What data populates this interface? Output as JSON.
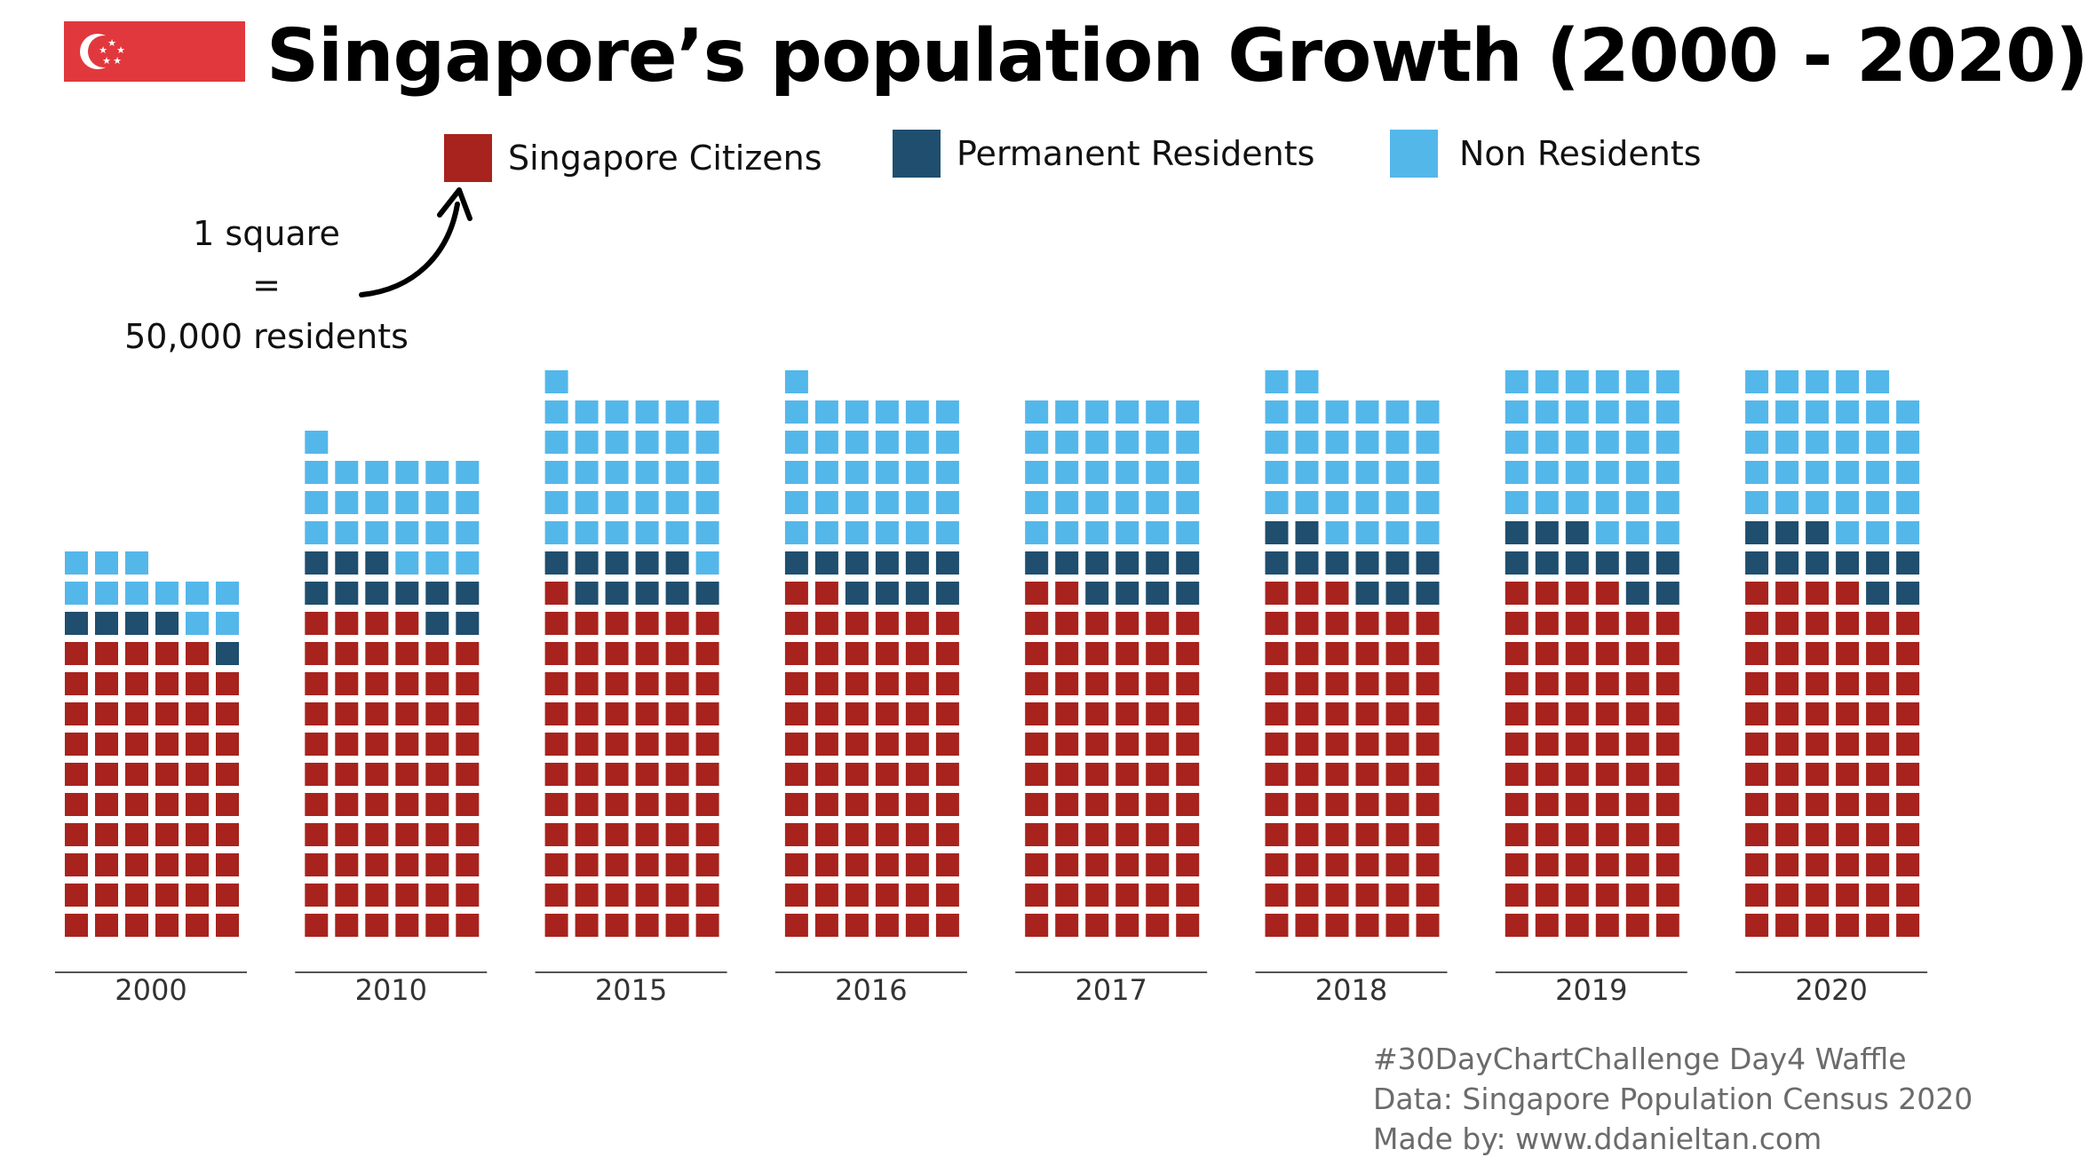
{
  "header": {
    "title": "Singapore’s population Growth (2000 - 2020)"
  },
  "legend": {
    "items": [
      {
        "label": "Singapore Citizens",
        "color": "#a8231d"
      },
      {
        "label": "Permanent Residents",
        "color": "#1f4e6e"
      },
      {
        "label": "Non Residents",
        "color": "#54b7ea"
      }
    ]
  },
  "note": {
    "line1": "1 square",
    "line2": "=",
    "line3": "50,000 residents"
  },
  "chart_data": {
    "type": "waffle",
    "unit": "1 square = 50,000 residents",
    "columns_per_group": 6,
    "categories": [
      "2000",
      "2010",
      "2015",
      "2016",
      "2017",
      "2018",
      "2019",
      "2020"
    ],
    "series": [
      {
        "name": "Singapore Citizens",
        "color": "#a8231d",
        "values": [
          59,
          64,
          67,
          68,
          68,
          69,
          70,
          70
        ]
      },
      {
        "name": "Permanent Residents",
        "color": "#1f4e6e",
        "values": [
          5,
          11,
          10,
          10,
          10,
          11,
          11,
          11
        ]
      },
      {
        "name": "Non Residents",
        "color": "#54b7ea",
        "values": [
          11,
          22,
          32,
          31,
          30,
          30,
          33,
          32
        ]
      }
    ]
  },
  "footer": {
    "line1": "#30DayChartChallenge Day4 Waffle",
    "line2": "Data: Singapore Population Census 2020",
    "line3": "Made by: www.ddanieltan.com"
  }
}
